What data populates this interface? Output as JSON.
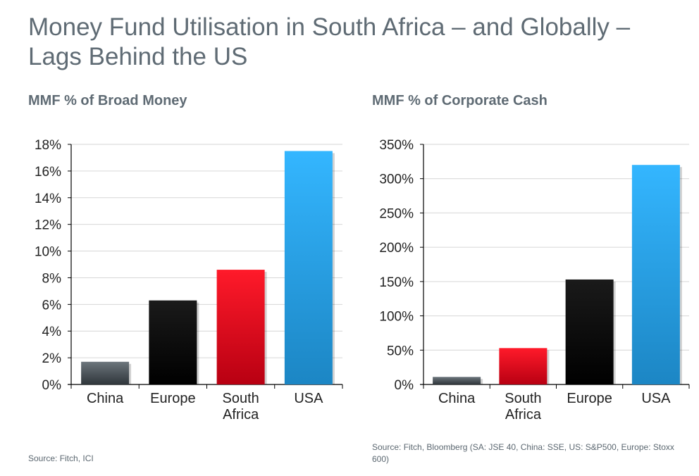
{
  "title": "Money Fund Utilisation in South Africa – and Globally – Lags Behind the US",
  "colors": {
    "China": "#4a5258",
    "Europe": "#000000",
    "South Africa": "#e30016",
    "USA": "#27a9ee",
    "axis": "#000000",
    "grid": "#d6d6d6",
    "text": "#222222"
  },
  "chart_data": [
    {
      "type": "bar",
      "title": "MMF % of Broad Money",
      "categories": [
        "China",
        "Europe",
        "South Africa",
        "USA"
      ],
      "category_lines": [
        [
          "China"
        ],
        [
          "Europe"
        ],
        [
          "South",
          "Africa"
        ],
        [
          "USA"
        ]
      ],
      "values": [
        1.7,
        6.3,
        8.6,
        17.5
      ],
      "unit": "%",
      "ylim": [
        0,
        18
      ],
      "yticks": [
        0,
        2,
        4,
        6,
        8,
        10,
        12,
        14,
        16,
        18
      ],
      "ytick_labels": [
        "0%",
        "2%",
        "4%",
        "6%",
        "8%",
        "10%",
        "12%",
        "14%",
        "16%",
        "18%"
      ],
      "xlabel": "",
      "ylabel": "",
      "source": "Source: Fitch, ICI"
    },
    {
      "type": "bar",
      "title": "MMF % of Corporate Cash",
      "categories": [
        "China",
        "South Africa",
        "Europe",
        "USA"
      ],
      "category_lines": [
        [
          "China"
        ],
        [
          "South",
          "Africa"
        ],
        [
          "Europe"
        ],
        [
          "USA"
        ]
      ],
      "values": [
        11,
        53,
        153,
        320
      ],
      "unit": "%",
      "ylim": [
        0,
        350
      ],
      "yticks": [
        0,
        50,
        100,
        150,
        200,
        250,
        300,
        350
      ],
      "ytick_labels": [
        "0%",
        "50%",
        "100%",
        "150%",
        "200%",
        "250%",
        "300%",
        "350%"
      ],
      "xlabel": "",
      "ylabel": "",
      "source": "Source: Fitch, Bloomberg (SA: JSE 40, China: SSE, US: S&P500, Europe: Stoxx 600)"
    }
  ]
}
